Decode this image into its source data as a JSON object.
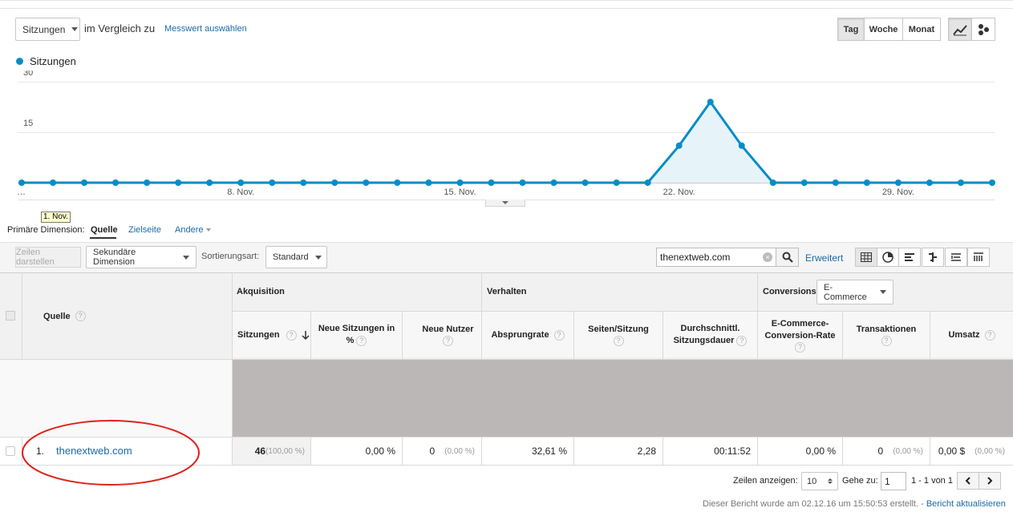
{
  "controls": {
    "metric_select": "Sitzungen",
    "compare_text": "im Vergleich zu",
    "metric_link": "Messwert auswählen",
    "period_buttons": [
      "Tag",
      "Woche",
      "Monat"
    ]
  },
  "chart_data": {
    "type": "area",
    "legend": "Sitzungen",
    "y_ticks": [
      "30",
      "15"
    ],
    "ylim": [
      0,
      30
    ],
    "x_labels": [
      "…",
      "8. Nov.",
      "15. Nov.",
      "22. Nov.",
      "29. Nov."
    ],
    "x": [
      "1. Nov.",
      "2. Nov.",
      "3. Nov.",
      "4. Nov.",
      "5. Nov.",
      "6. Nov.",
      "7. Nov.",
      "8. Nov.",
      "9. Nov.",
      "10. Nov.",
      "11. Nov.",
      "12. Nov.",
      "13. Nov.",
      "14. Nov.",
      "15. Nov.",
      "16. Nov.",
      "17. Nov.",
      "18. Nov.",
      "19. Nov.",
      "20. Nov.",
      "21. Nov.",
      "22. Nov.",
      "23. Nov.",
      "24. Nov.",
      "25. Nov.",
      "26. Nov.",
      "27. Nov.",
      "28. Nov.",
      "29. Nov.",
      "30. Nov.",
      "1. Dez.",
      "2. Dez."
    ],
    "values": [
      0,
      0,
      0,
      0,
      0,
      0,
      0,
      0,
      0,
      0,
      0,
      0,
      0,
      0,
      0,
      0,
      0,
      0,
      0,
      0,
      0,
      11,
      24,
      11,
      0,
      0,
      0,
      0,
      0,
      0,
      0,
      0
    ],
    "tooltip": "1. Nov.",
    "color": "#058dc7",
    "fill": "#e6f4fa"
  },
  "dimension": {
    "label": "Primäre Dimension:",
    "active": "Quelle",
    "option2": "Zielseite",
    "option3": "Andere"
  },
  "toolbar": {
    "rows_button": "Zeilen darstellen",
    "secondary_dimension": "Sekundäre Dimension",
    "sort_label": "Sortierungsart:",
    "sort_value": "Standard",
    "search_value": "thenextweb.com",
    "advanced_link": "Erweitert"
  },
  "table": {
    "source_header": "Quelle",
    "group_acquisition": "Akquisition",
    "group_behavior": "Verhalten",
    "group_conversions": "Conversions",
    "conversions_select": "E-Commerce",
    "col_sessions": "Sitzungen",
    "col_new_sessions_1": "Neue Sitzungen in",
    "col_new_sessions_2": "%",
    "col_new_users": "Neue Nutzer",
    "col_bounce": "Absprungrate",
    "col_pages": "Seiten/Sitzung",
    "col_duration_1": "Durchschnittl.",
    "col_duration_2": "Sitzungsdauer",
    "col_ecom_rate_1": "E-Commerce-",
    "col_ecom_rate_2": "Conversion-Rate",
    "col_transactions": "Transaktionen",
    "col_revenue": "Umsatz",
    "row": {
      "index": "1.",
      "source": "thenextweb.com",
      "sessions": "46",
      "sessions_pct": "(100,00 %)",
      "new_sessions": "0,00 %",
      "new_users": "0",
      "new_users_pct": "(0,00 %)",
      "bounce": "32,61 %",
      "pages": "2,28",
      "duration": "00:11:52",
      "ecom_rate": "0,00 %",
      "transactions": "0",
      "transactions_pct": "(0,00 %)",
      "revenue": "0,00 $",
      "revenue_pct": "(0,00 %)"
    }
  },
  "pagination": {
    "rows_label": "Zeilen anzeigen:",
    "rows_value": "10",
    "goto_label": "Gehe zu:",
    "goto_value": "1",
    "range": "1 - 1 von 1"
  },
  "footer": {
    "created": "Dieser Bericht wurde am 02.12.16 um 15:50:53 erstellt. -",
    "refresh_link": "Bericht aktualisieren"
  },
  "annotation_color": "#e0211b"
}
